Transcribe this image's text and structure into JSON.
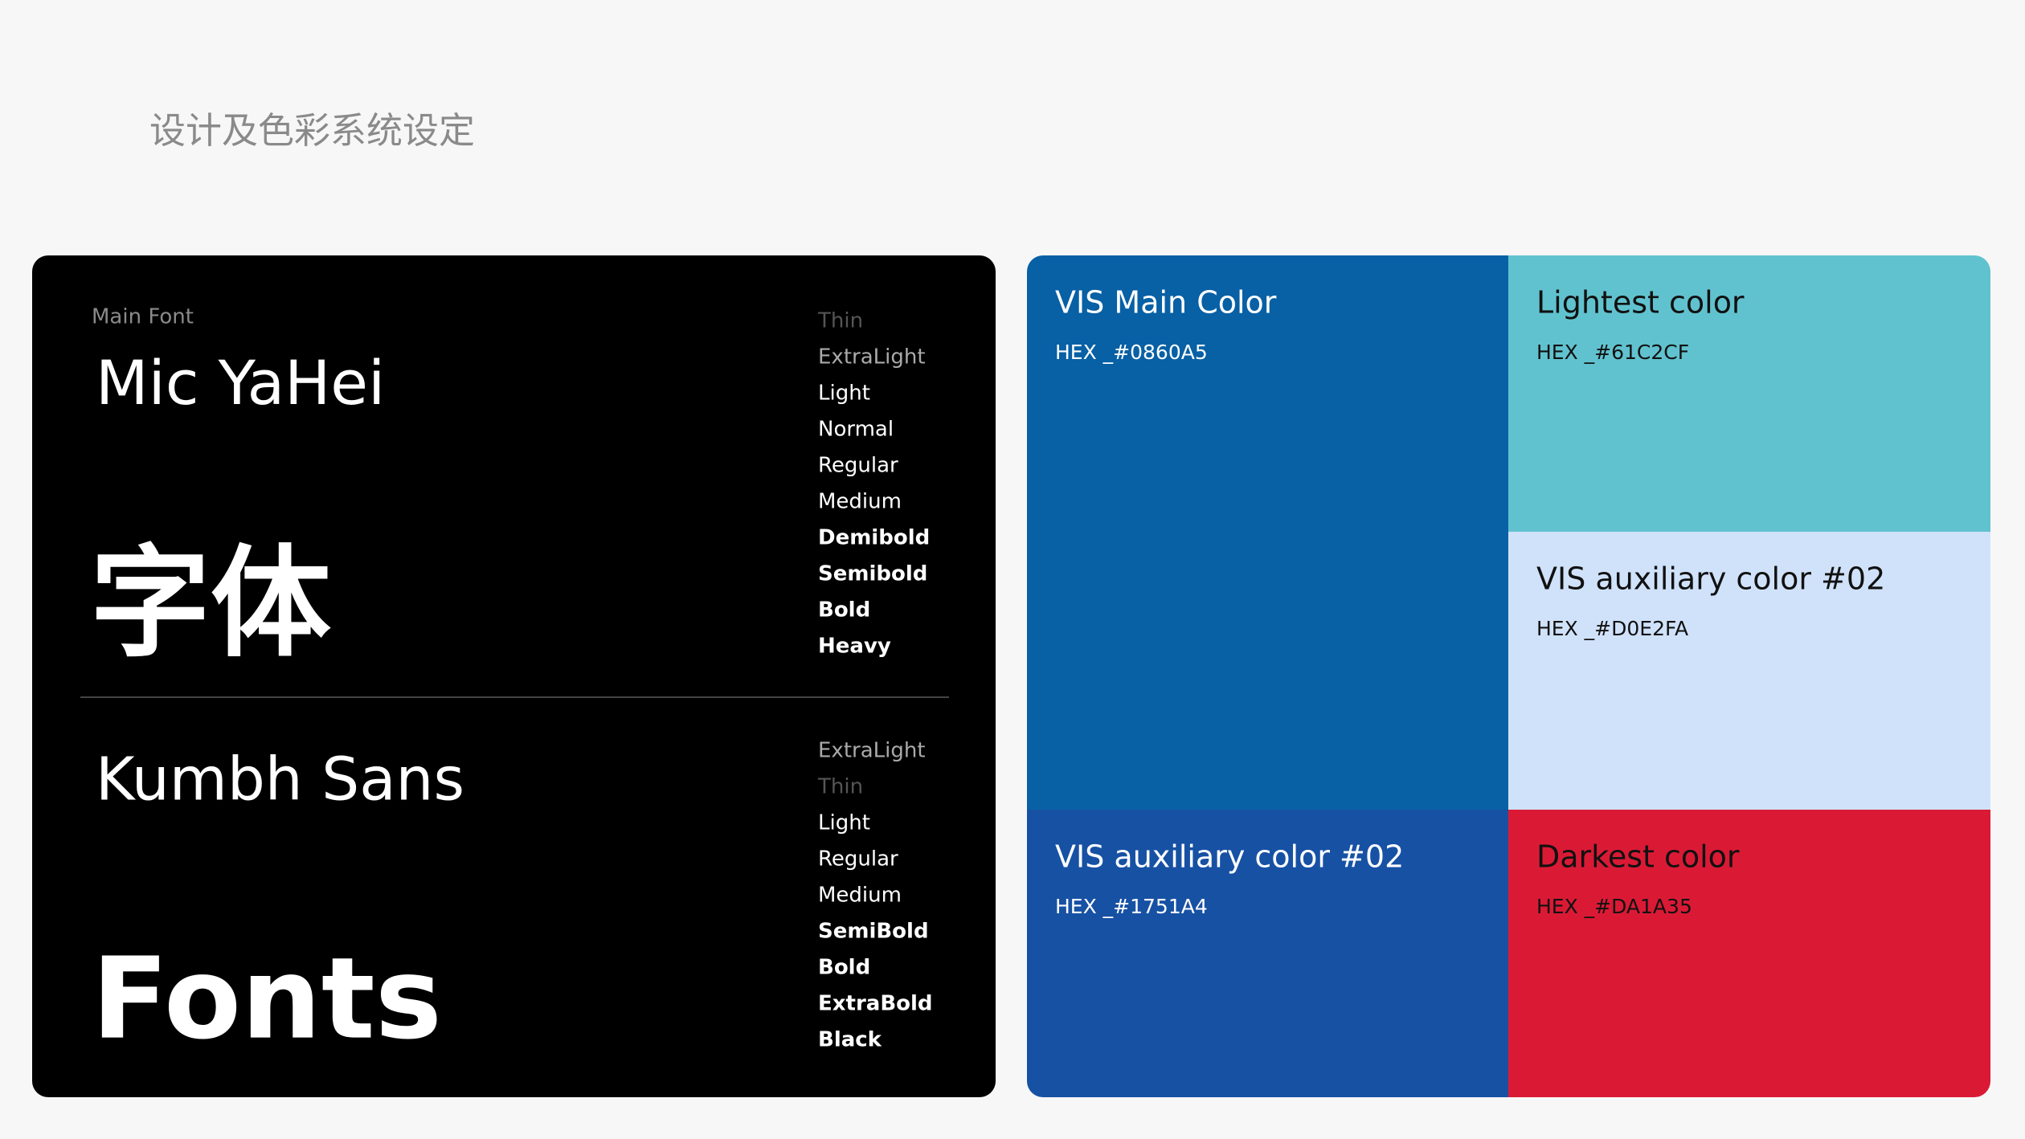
{
  "header": {
    "title": "设计及色彩系统设定"
  },
  "fonts": {
    "label": "Main Font",
    "primary": {
      "name": "Mic YaHei",
      "sample": "字体",
      "weights": [
        "Thin",
        "ExtraLight",
        "Light",
        "Normal",
        "Regular",
        "Medium",
        "Demibold",
        "Semibold",
        "Bold",
        "Heavy"
      ]
    },
    "secondary": {
      "name": "Kumbh Sans",
      "sample": "Fonts",
      "weights": [
        "ExtraLight",
        "Thin",
        "Light",
        "Regular",
        "Medium",
        "SemiBold",
        "Bold",
        "ExtraBold",
        "Black"
      ]
    }
  },
  "colors": [
    {
      "name": "VIS Main Color",
      "hex": "HEX _#0860A5",
      "color": "#0860A5",
      "text_color": "#ffffff"
    },
    {
      "name": "Lightest color",
      "hex": "HEX _#61C2CF",
      "color": "#61C2CF",
      "text_color": "#111111"
    },
    {
      "name": "VIS auxiliary color #02",
      "hex": "HEX _#D0E2FA",
      "color": "#D0E2FA",
      "text_color": "#111111"
    },
    {
      "name": "VIS auxiliary color #02",
      "hex": "HEX _#1751A4",
      "color": "#1751A4",
      "text_color": "#ffffff"
    },
    {
      "name": "Darkest color",
      "hex": "HEX _#DA1A35",
      "color": "#DA1A35",
      "text_color": "#111111"
    }
  ]
}
